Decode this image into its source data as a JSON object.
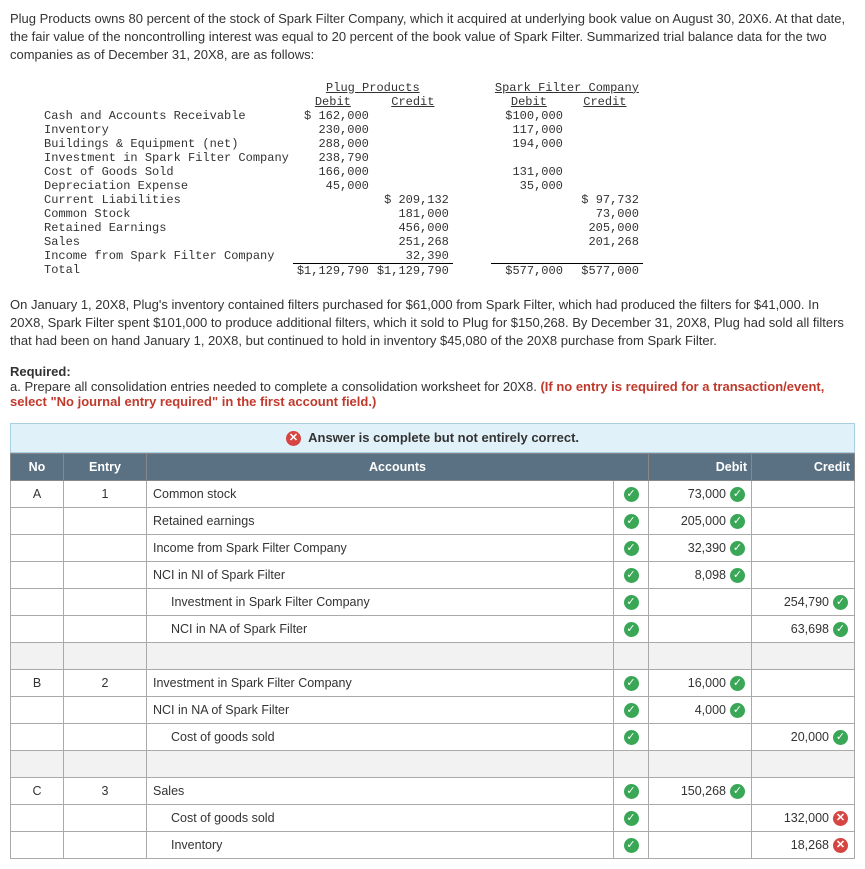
{
  "intro": "Plug Products owns 80 percent of the stock of Spark Filter Company, which it acquired at underlying book value on August 30, 20X6. At that date, the fair value of the noncontrolling interest was equal to 20 percent of the book value of Spark Filter. Summarized trial balance data for the two companies as of December 31, 20X8, are as follows:",
  "tb": {
    "co1": "Plug Products",
    "co2": "Spark Filter Company",
    "debit": "Debit",
    "credit": "Credit",
    "rows": [
      {
        "label": "Cash and Accounts Receivable",
        "pd": "$ 162,000",
        "pc": "",
        "sd": "$100,000",
        "sc": ""
      },
      {
        "label": "Inventory",
        "pd": "230,000",
        "pc": "",
        "sd": "117,000",
        "sc": ""
      },
      {
        "label": "Buildings & Equipment (net)",
        "pd": "288,000",
        "pc": "",
        "sd": "194,000",
        "sc": ""
      },
      {
        "label": "Investment in Spark Filter Company",
        "pd": "238,790",
        "pc": "",
        "sd": "",
        "sc": ""
      },
      {
        "label": "Cost of Goods Sold",
        "pd": "166,000",
        "pc": "",
        "sd": "131,000",
        "sc": ""
      },
      {
        "label": "Depreciation Expense",
        "pd": "45,000",
        "pc": "",
        "sd": "35,000",
        "sc": ""
      },
      {
        "label": "Current Liabilities",
        "pd": "",
        "pc": "$ 209,132",
        "sd": "",
        "sc": "$ 97,732"
      },
      {
        "label": "Common Stock",
        "pd": "",
        "pc": "181,000",
        "sd": "",
        "sc": "73,000"
      },
      {
        "label": "Retained Earnings",
        "pd": "",
        "pc": "456,000",
        "sd": "",
        "sc": "205,000"
      },
      {
        "label": "Sales",
        "pd": "",
        "pc": "251,268",
        "sd": "",
        "sc": "201,268"
      },
      {
        "label": "Income from Spark Filter Company",
        "pd": "",
        "pc": "32,390",
        "sd": "",
        "sc": ""
      }
    ],
    "total_label": "Total",
    "totals": {
      "pd": "$1,129,790",
      "pc": "$1,129,790",
      "sd": "$577,000",
      "sc": "$577,000"
    }
  },
  "middle": "On January 1, 20X8, Plug's inventory contained filters purchased for $61,000 from Spark Filter, which had produced the filters for $41,000. In 20X8, Spark Filter spent $101,000 to produce additional filters, which it sold to Plug for $150,268. By December 31, 20X8, Plug had sold all filters that had been on hand January 1, 20X8, but continued to hold in inventory $45,080 of the 20X8 purchase from Spark Filter.",
  "required_label": "Required:",
  "required_a": "a. Prepare all consolidation entries needed to complete a consolidation worksheet for 20X8. ",
  "required_red": "(If no entry is required for a transaction/event, select \"No journal entry required\" in the first account field.)",
  "banner": "Answer is complete but not entirely correct.",
  "headers": {
    "no": "No",
    "entry": "Entry",
    "accounts": "Accounts",
    "debit": "Debit",
    "credit": "Credit"
  },
  "entries": [
    {
      "no": "A",
      "entry": "1",
      "lines": [
        {
          "acct": "Common stock",
          "indent": false,
          "debit": "73,000",
          "credit": "",
          "d_ok": true,
          "c_ok": null,
          "a_ok": true
        },
        {
          "acct": "Retained earnings",
          "indent": false,
          "debit": "205,000",
          "credit": "",
          "d_ok": true,
          "c_ok": null,
          "a_ok": true
        },
        {
          "acct": "Income from Spark Filter Company",
          "indent": false,
          "debit": "32,390",
          "credit": "",
          "d_ok": true,
          "c_ok": null,
          "a_ok": true
        },
        {
          "acct": "NCI in NI of Spark Filter",
          "indent": false,
          "debit": "8,098",
          "credit": "",
          "d_ok": true,
          "c_ok": null,
          "a_ok": true
        },
        {
          "acct": "Investment in Spark Filter Company",
          "indent": true,
          "debit": "",
          "credit": "254,790",
          "d_ok": null,
          "c_ok": true,
          "a_ok": true
        },
        {
          "acct": "NCI in NA of Spark Filter",
          "indent": true,
          "debit": "",
          "credit": "63,698",
          "d_ok": null,
          "c_ok": true,
          "a_ok": true
        }
      ]
    },
    {
      "no": "B",
      "entry": "2",
      "lines": [
        {
          "acct": "Investment in Spark Filter Company",
          "indent": false,
          "debit": "16,000",
          "credit": "",
          "d_ok": true,
          "c_ok": null,
          "a_ok": true
        },
        {
          "acct": "NCI in NA of Spark Filter",
          "indent": false,
          "debit": "4,000",
          "credit": "",
          "d_ok": true,
          "c_ok": null,
          "a_ok": true
        },
        {
          "acct": "Cost of goods sold",
          "indent": true,
          "debit": "",
          "credit": "20,000",
          "d_ok": null,
          "c_ok": true,
          "a_ok": true
        }
      ]
    },
    {
      "no": "C",
      "entry": "3",
      "lines": [
        {
          "acct": "Sales",
          "indent": false,
          "debit": "150,268",
          "credit": "",
          "d_ok": true,
          "c_ok": null,
          "a_ok": true
        },
        {
          "acct": "Cost of goods sold",
          "indent": true,
          "debit": "",
          "credit": "132,000",
          "d_ok": null,
          "c_ok": false,
          "a_ok": true
        },
        {
          "acct": "Inventory",
          "indent": true,
          "debit": "",
          "credit": "18,268",
          "d_ok": null,
          "c_ok": false,
          "a_ok": true
        }
      ]
    }
  ]
}
